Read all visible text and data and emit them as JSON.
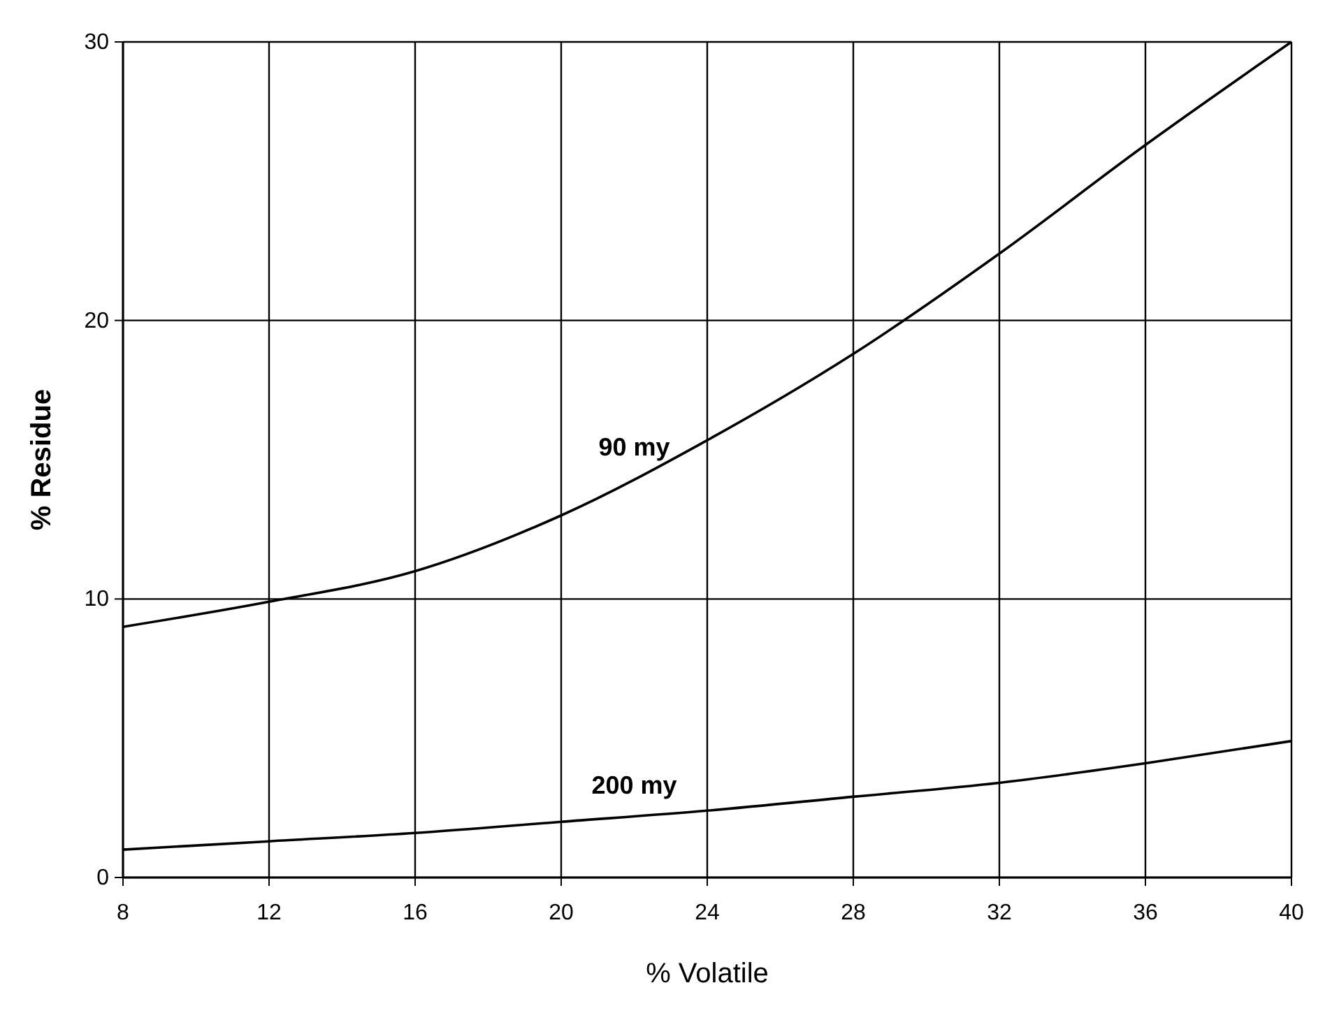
{
  "chart_data": {
    "type": "line",
    "xlabel": "% Volatile",
    "ylabel": "% Residue",
    "x": [
      8,
      12,
      16,
      20,
      24,
      28,
      32,
      36,
      40
    ],
    "series": [
      {
        "name": "90 my",
        "color": "#000000",
        "values": [
          9,
          9.9,
          11,
          13,
          15.7,
          18.8,
          22.4,
          26.3,
          30
        ]
      },
      {
        "name": "200 my",
        "color": "#000000",
        "values": [
          1,
          1.3,
          1.6,
          2,
          2.4,
          2.9,
          3.4,
          4.1,
          4.9
        ]
      }
    ],
    "xlim": [
      8,
      40
    ],
    "xticks": [
      8,
      12,
      16,
      20,
      24,
      28,
      32,
      36,
      40
    ],
    "ylim": [
      0,
      30
    ],
    "yticks": [
      0,
      10,
      20,
      30
    ],
    "grid": true,
    "marker": "none",
    "line_style": "solid"
  }
}
